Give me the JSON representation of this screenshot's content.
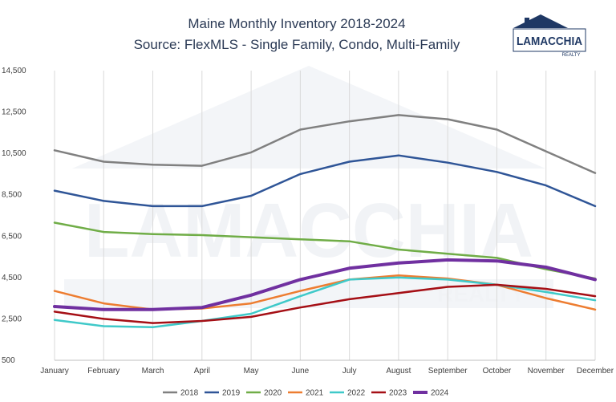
{
  "logo": {
    "brand": "LAMACCHIA",
    "sub": "REALTY"
  },
  "chart_data": {
    "type": "line",
    "title": "Maine Monthly Inventory 2018-2024",
    "subtitle": "Source: FlexMLS - Single Family, Condo, Multi-Family",
    "xlabel": "",
    "ylabel": "",
    "categories": [
      "January",
      "February",
      "March",
      "April",
      "May",
      "June",
      "July",
      "August",
      "September",
      "October",
      "November",
      "December"
    ],
    "yticks": [
      500,
      2500,
      4500,
      6500,
      8500,
      10500,
      12500,
      14500
    ],
    "ytick_labels": [
      "500",
      "2,500",
      "4,500",
      "6,500",
      "8,500",
      "10,500",
      "12,500",
      "14,500"
    ],
    "ylim": [
      500,
      14500
    ],
    "grid": "vertical",
    "legend_position": "bottom",
    "series": [
      {
        "name": "2018",
        "color": "#808080",
        "width": 2.5,
        "values": [
          10650,
          10100,
          9950,
          9900,
          10550,
          11650,
          12050,
          12350,
          12150,
          11650,
          10600,
          9550
        ]
      },
      {
        "name": "2019",
        "color": "#2f5597",
        "width": 2.5,
        "values": [
          8700,
          8200,
          7950,
          7950,
          8450,
          9500,
          10100,
          10400,
          10050,
          9600,
          8950,
          7950
        ]
      },
      {
        "name": "2020",
        "color": "#70ad47",
        "width": 2.5,
        "values": [
          7150,
          6700,
          6600,
          6550,
          6450,
          6350,
          6250,
          5850,
          5650,
          5450,
          4900,
          4450
        ]
      },
      {
        "name": "2021",
        "color": "#ed7d31",
        "width": 2.5,
        "values": [
          3850,
          3250,
          2950,
          3000,
          3250,
          3850,
          4400,
          4600,
          4450,
          4150,
          3500,
          2950
        ]
      },
      {
        "name": "2022",
        "color": "#3fc9c9",
        "width": 2.5,
        "values": [
          2450,
          2150,
          2100,
          2400,
          2750,
          3600,
          4400,
          4500,
          4400,
          4150,
          3800,
          3400
        ]
      },
      {
        "name": "2023",
        "color": "#a50f15",
        "width": 2.5,
        "values": [
          2850,
          2500,
          2300,
          2400,
          2600,
          3050,
          3450,
          3750,
          4050,
          4150,
          3950,
          3600
        ]
      },
      {
        "name": "2024",
        "color": "#7030a0",
        "width": 4,
        "values": [
          3100,
          2950,
          2950,
          3050,
          3650,
          4400,
          4950,
          5200,
          5350,
          5300,
          5000,
          4400
        ]
      }
    ]
  }
}
